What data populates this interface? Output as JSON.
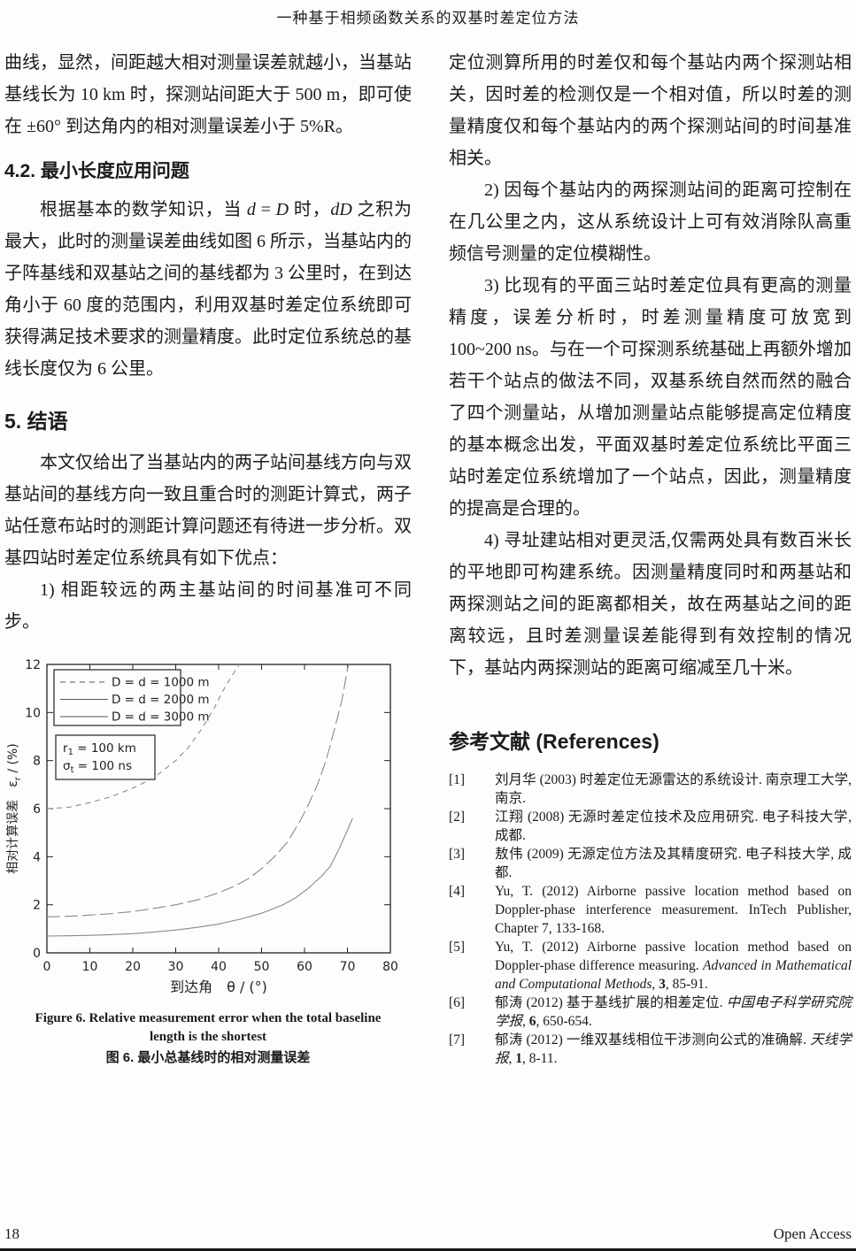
{
  "header": {
    "title": "一种基于相频函数关系的双基时差定位方法"
  },
  "left_column": {
    "blocks": [
      {
        "type": "p",
        "indent": false,
        "segments": [
          {
            "t": "曲线，显然，间距越大相对测量误差就越小，当基站基线长为 10 km 时，探测站间距大于 500 m，即可使在 ±60° 到达角内的相对测量误差小于 5%R。"
          }
        ]
      },
      {
        "type": "h2",
        "text": "4.2. 最小长度应用问题"
      },
      {
        "type": "p",
        "indent": true,
        "segments": [
          {
            "t": "根据基本的数学知识，当 "
          },
          {
            "t": "d",
            "i": true
          },
          {
            "t": " = "
          },
          {
            "t": "D",
            "i": true
          },
          {
            "t": " 时，"
          },
          {
            "t": "dD",
            "i": true
          },
          {
            "t": " 之积为最大，此时的测量误差曲线如图 6 所示，当基站内的子阵基线和双基站之间的基线都为 3 公里时，在到达角小于 60 度的范围内，利用双基时差定位系统即可获得满足技术要求的测量精度。此时定位系统总的基线长度仅为 6 公里。"
          }
        ]
      },
      {
        "type": "h1",
        "text": "5. 结语"
      },
      {
        "type": "p",
        "indent": true,
        "segments": [
          {
            "t": "本文仅给出了当基站内的两子站间基线方向与双基站间的基线方向一致且重合时的测距计算式，两子站任意布站时的测距计算问题还有待进一步分析。双基四站时差定位系统具有如下优点："
          }
        ]
      },
      {
        "type": "p",
        "indent": true,
        "segments": [
          {
            "t": "1) 相距较远的两主基站间的时间基准可不同步。"
          }
        ]
      }
    ]
  },
  "right_column": {
    "blocks": [
      {
        "type": "p",
        "indent": false,
        "segments": [
          {
            "t": "定位测算所用的时差仅和每个基站内两个探测站相关，因时差的检测仅是一个相对值，所以时差的测量精度仅和每个基站内的两个探测站间的时间基准相关。"
          }
        ]
      },
      {
        "type": "p",
        "indent": true,
        "segments": [
          {
            "t": "2) 因每个基站内的两探测站间的距离可控制在在几公里之内，这从系统设计上可有效消除队高重频信号测量的定位模糊性。"
          }
        ]
      },
      {
        "type": "p",
        "indent": true,
        "segments": [
          {
            "t": "3) 比现有的平面三站时差定位具有更高的测量精度，误差分析时，时差测量精度可放宽到 100~200 ns。与在一个可探测系统基础上再额外增加若干个站点的做法不同，双基系统自然而然的融合了四个测量站，从增加测量站点能够提高定位精度的基本概念出发，平面双基时差定位系统比平面三站时差定位系统增加了一个站点，因此，测量精度的提高是合理的。"
          }
        ]
      },
      {
        "type": "p",
        "indent": true,
        "segments": [
          {
            "t": "4) 寻址建站相对更灵活,仅需两处具有数百米长的平地即可构建系统。因测量精度同时和两基站和两探测站之间的距离都相关，故在两基站之间的距离较远，且时差测量误差能得到有效控制的情况下，基站内两探测站的距离可缩减至几十米。"
          }
        ]
      }
    ]
  },
  "figure": {
    "caption_en_line1": "Figure 6. Relative measurement error when the total baseline",
    "caption_en_line2": "length is the shortest",
    "caption_zh": "图 6. 最小总基线时的相对测量误差"
  },
  "references": {
    "heading": "参考文献  (References)",
    "items": [
      {
        "label": "[1]",
        "segments": [
          {
            "t": "刘月华  (2003)  时差定位无源雷达的系统设计.  南京理工大学, 南京."
          }
        ]
      },
      {
        "label": "[2]",
        "segments": [
          {
            "t": "江翔  (2008)  无源时差定位技术及应用研究.  电子科技大学, 成都."
          }
        ]
      },
      {
        "label": "[3]",
        "segments": [
          {
            "t": "敖伟  (2009)  无源定位方法及其精度研究.  电子科技大学, 成都."
          }
        ]
      },
      {
        "label": "[4]",
        "segments": [
          {
            "t": "Yu, T. (2012) Airborne passive location method based on Doppler-phase interference measurement. InTech Publisher, Chapter 7, 133-168."
          }
        ]
      },
      {
        "label": "[5]",
        "segments": [
          {
            "t": "Yu, T. (2012) Airborne passive location method based on Doppler-phase difference measuring. "
          },
          {
            "t": "Advanced in Mathematical and Computational Methods",
            "i": true
          },
          {
            "t": ", "
          },
          {
            "t": "3",
            "b": true
          },
          {
            "t": ", 85-91."
          }
        ]
      },
      {
        "label": "[6]",
        "segments": [
          {
            "t": "郁涛  (2012)  基于基线扩展的相差定位.  "
          },
          {
            "t": "中国电子科学研究院学报",
            "i": true
          },
          {
            "t": ", "
          },
          {
            "t": "6",
            "b": true
          },
          {
            "t": ", 650-654."
          }
        ]
      },
      {
        "label": "[7]",
        "segments": [
          {
            "t": "郁涛  (2012)  一维双基线相位干涉测向公式的准确解.  "
          },
          {
            "t": "天线学报",
            "i": true
          },
          {
            "t": ", "
          },
          {
            "t": "1",
            "b": true
          },
          {
            "t": ", 8-11."
          }
        ]
      }
    ]
  },
  "footer": {
    "page_number": "18",
    "right_text": "Open Access"
  },
  "chart_data": {
    "type": "line",
    "title": "",
    "xlabel": "到达角　θ / (°)",
    "ylabel_main": "相对计算误差　ε",
    "ylabel_sub": "r",
    "ylabel_unit": " / (%)",
    "xlim": [
      0,
      80
    ],
    "ylim": [
      0,
      12
    ],
    "xticks": [
      0,
      10,
      20,
      30,
      40,
      50,
      60,
      70,
      80
    ],
    "yticks": [
      0,
      2,
      4,
      6,
      8,
      10,
      12
    ],
    "grid": false,
    "legend_position": "upper-left",
    "annotation": [
      {
        "base": "r",
        "sub": "1",
        "rest": " = 100 km"
      },
      {
        "base": "σ",
        "sub": "t",
        "rest": " = 100 ns"
      }
    ],
    "series": [
      {
        "name": "D = d = 1000 m",
        "legend_style": "dashed",
        "line_style": "dashed",
        "x": [
          0,
          5,
          10,
          15,
          20,
          25,
          30,
          33,
          36,
          39,
          41,
          43,
          44.8
        ],
        "y": [
          6.0,
          6.05,
          6.25,
          6.5,
          6.85,
          7.3,
          8.0,
          8.55,
          9.3,
          10.2,
          10.9,
          11.5,
          12.0
        ]
      },
      {
        "name": "D = d = 2000 m",
        "legend_style": "solid",
        "line_style": "longdash",
        "x": [
          0,
          5,
          10,
          15,
          20,
          25,
          30,
          35,
          40,
          44,
          47,
          50,
          53,
          56,
          59,
          61,
          63,
          65,
          67,
          68.7,
          70.2
        ],
        "y": [
          1.5,
          1.52,
          1.57,
          1.63,
          1.72,
          1.85,
          2.0,
          2.2,
          2.5,
          2.8,
          3.1,
          3.5,
          4.0,
          4.6,
          5.5,
          6.2,
          7.0,
          8.0,
          9.3,
          10.5,
          12.0
        ]
      },
      {
        "name": "D = d = 3000 m",
        "legend_style": "solid",
        "line_style": "solid",
        "x": [
          0,
          5,
          10,
          15,
          20,
          25,
          30,
          35,
          40,
          45,
          50,
          55,
          58,
          61,
          64,
          66,
          68,
          70,
          71.2
        ],
        "y": [
          0.7,
          0.71,
          0.73,
          0.76,
          0.8,
          0.87,
          0.95,
          1.06,
          1.2,
          1.4,
          1.65,
          2.0,
          2.3,
          2.7,
          3.2,
          3.6,
          4.3,
          5.1,
          5.6
        ]
      }
    ]
  }
}
